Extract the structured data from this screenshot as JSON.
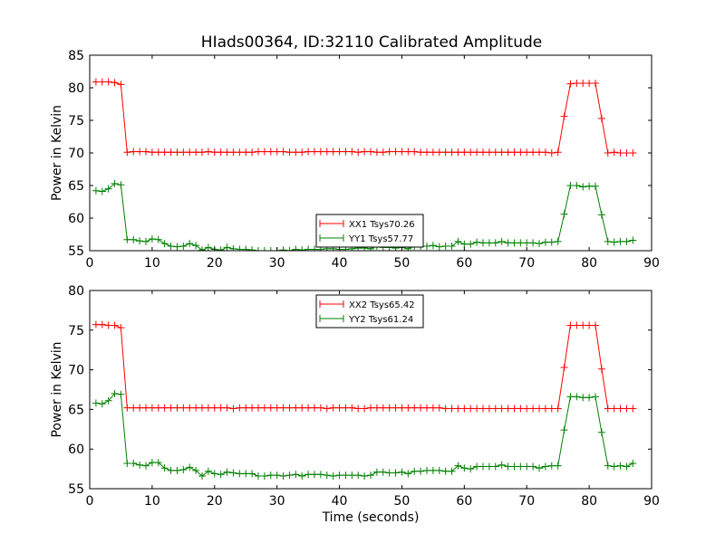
{
  "figure": {
    "title": "HIads00364, ID:32110 Calibrated Amplitude"
  },
  "chart_data": [
    {
      "type": "line",
      "title": "HIads00364, ID:32110 Calibrated Amplitude",
      "xlabel": "",
      "ylabel": "Power in Kelvin",
      "xlim": [
        0,
        90
      ],
      "ylim": [
        55,
        85
      ],
      "xticks": [
        0,
        10,
        20,
        30,
        40,
        50,
        60,
        70,
        80,
        90
      ],
      "yticks": [
        55,
        60,
        65,
        70,
        75,
        80,
        85
      ],
      "grid": false,
      "legend_position": "lower-center",
      "x": [
        1,
        2,
        3,
        4,
        5,
        6,
        7,
        8,
        9,
        10,
        11,
        12,
        13,
        14,
        15,
        16,
        17,
        18,
        19,
        20,
        21,
        22,
        23,
        24,
        25,
        26,
        27,
        28,
        29,
        30,
        31,
        32,
        33,
        34,
        35,
        36,
        37,
        38,
        39,
        40,
        41,
        42,
        43,
        44,
        45,
        46,
        47,
        48,
        49,
        50,
        51,
        52,
        53,
        54,
        55,
        56,
        57,
        58,
        59,
        60,
        61,
        62,
        63,
        64,
        65,
        66,
        67,
        68,
        69,
        70,
        71,
        72,
        73,
        74,
        75,
        76,
        77,
        78,
        79,
        80,
        81,
        82,
        83,
        84,
        85,
        86,
        87
      ],
      "series": [
        {
          "name": "XX1 Tsys70.26",
          "color": "#ff0000",
          "values": [
            80.9,
            80.9,
            80.9,
            80.8,
            80.5,
            70.1,
            70.2,
            70.2,
            70.2,
            70.1,
            70.1,
            70.1,
            70.1,
            70.1,
            70.1,
            70.1,
            70.1,
            70.1,
            70.2,
            70.1,
            70.1,
            70.1,
            70.1,
            70.1,
            70.1,
            70.1,
            70.2,
            70.2,
            70.2,
            70.2,
            70.2,
            70.1,
            70.1,
            70.1,
            70.2,
            70.2,
            70.2,
            70.2,
            70.2,
            70.2,
            70.2,
            70.2,
            70.1,
            70.2,
            70.2,
            70.1,
            70.1,
            70.2,
            70.2,
            70.2,
            70.2,
            70.2,
            70.1,
            70.1,
            70.1,
            70.1,
            70.1,
            70.1,
            70.1,
            70.1,
            70.1,
            70.1,
            70.1,
            70.1,
            70.1,
            70.1,
            70.1,
            70.1,
            70.1,
            70.1,
            70.1,
            70.1,
            70.1,
            70.0,
            70.1,
            75.6,
            80.6,
            80.7,
            80.7,
            80.7,
            80.7,
            75.3,
            70.0,
            70.1,
            70.0,
            70.0,
            70.0
          ]
        },
        {
          "name": "YY1 Tsys57.77",
          "color": "#008000",
          "values": [
            64.2,
            64.1,
            64.5,
            65.3,
            65.1,
            56.7,
            56.7,
            56.5,
            56.4,
            56.8,
            56.7,
            56.1,
            55.7,
            55.6,
            55.7,
            56.1,
            55.8,
            55.1,
            55.5,
            55.2,
            55.1,
            55.5,
            55.3,
            55.2,
            55.2,
            55.1,
            55.0,
            55.0,
            55.0,
            55.0,
            55.1,
            55.0,
            55.2,
            55.1,
            55.2,
            55.2,
            55.2,
            55.3,
            55.3,
            55.2,
            55.2,
            55.3,
            55.4,
            55.4,
            55.3,
            55.7,
            55.5,
            55.5,
            55.4,
            55.5,
            55.3,
            55.7,
            55.7,
            55.7,
            55.8,
            55.6,
            55.7,
            55.7,
            56.4,
            56.0,
            56.0,
            56.3,
            56.2,
            56.2,
            56.2,
            56.4,
            56.2,
            56.2,
            56.2,
            56.2,
            56.2,
            56.1,
            56.3,
            56.3,
            56.4,
            60.6,
            65.0,
            65.0,
            64.8,
            64.9,
            64.9,
            60.5,
            56.4,
            56.3,
            56.4,
            56.4,
            56.6
          ]
        }
      ]
    },
    {
      "type": "line",
      "title": "",
      "xlabel": "Time (seconds)",
      "ylabel": "Power in Kelvin",
      "xlim": [
        0,
        90
      ],
      "ylim": [
        55,
        80
      ],
      "xticks": [
        0,
        10,
        20,
        30,
        40,
        50,
        60,
        70,
        80,
        90
      ],
      "yticks": [
        55,
        60,
        65,
        70,
        75,
        80
      ],
      "grid": false,
      "legend_position": "upper-center",
      "x": [
        1,
        2,
        3,
        4,
        5,
        6,
        7,
        8,
        9,
        10,
        11,
        12,
        13,
        14,
        15,
        16,
        17,
        18,
        19,
        20,
        21,
        22,
        23,
        24,
        25,
        26,
        27,
        28,
        29,
        30,
        31,
        32,
        33,
        34,
        35,
        36,
        37,
        38,
        39,
        40,
        41,
        42,
        43,
        44,
        45,
        46,
        47,
        48,
        49,
        50,
        51,
        52,
        53,
        54,
        55,
        56,
        57,
        58,
        59,
        60,
        61,
        62,
        63,
        64,
        65,
        66,
        67,
        68,
        69,
        70,
        71,
        72,
        73,
        74,
        75,
        76,
        77,
        78,
        79,
        80,
        81,
        82,
        83,
        84,
        85,
        86,
        87
      ],
      "series": [
        {
          "name": "XX2 Tsys65.42",
          "color": "#ff0000",
          "values": [
            75.7,
            75.7,
            75.6,
            75.6,
            75.3,
            65.2,
            65.2,
            65.2,
            65.2,
            65.2,
            65.2,
            65.2,
            65.2,
            65.2,
            65.2,
            65.2,
            65.2,
            65.2,
            65.2,
            65.2,
            65.2,
            65.2,
            65.1,
            65.2,
            65.2,
            65.2,
            65.2,
            65.2,
            65.2,
            65.2,
            65.2,
            65.2,
            65.2,
            65.2,
            65.2,
            65.2,
            65.2,
            65.1,
            65.2,
            65.2,
            65.2,
            65.2,
            65.1,
            65.1,
            65.2,
            65.2,
            65.2,
            65.2,
            65.2,
            65.2,
            65.2,
            65.2,
            65.2,
            65.2,
            65.2,
            65.2,
            65.1,
            65.1,
            65.1,
            65.1,
            65.1,
            65.1,
            65.1,
            65.1,
            65.1,
            65.1,
            65.1,
            65.1,
            65.1,
            65.1,
            65.1,
            65.1,
            65.1,
            65.1,
            65.1,
            70.3,
            75.6,
            75.6,
            75.6,
            75.6,
            75.6,
            70.1,
            65.1,
            65.1,
            65.1,
            65.1,
            65.1
          ]
        },
        {
          "name": "YY2 Tsys61.24",
          "color": "#008000",
          "values": [
            65.8,
            65.7,
            66.1,
            67.0,
            66.9,
            58.2,
            58.2,
            58.0,
            57.9,
            58.3,
            58.3,
            57.6,
            57.3,
            57.3,
            57.4,
            57.7,
            57.3,
            56.6,
            57.2,
            56.9,
            56.8,
            57.1,
            57.0,
            56.9,
            56.9,
            56.9,
            56.6,
            56.6,
            56.7,
            56.7,
            56.6,
            56.7,
            56.8,
            56.6,
            56.8,
            56.8,
            56.8,
            56.7,
            56.6,
            56.7,
            56.7,
            56.7,
            56.7,
            56.6,
            56.7,
            57.1,
            57.1,
            57.0,
            57.0,
            57.1,
            56.9,
            57.2,
            57.2,
            57.3,
            57.3,
            57.3,
            57.2,
            57.2,
            57.9,
            57.6,
            57.5,
            57.8,
            57.8,
            57.8,
            57.8,
            58.0,
            57.8,
            57.8,
            57.8,
            57.8,
            57.8,
            57.6,
            57.8,
            57.9,
            57.9,
            62.4,
            66.6,
            66.6,
            66.5,
            66.5,
            66.6,
            62.1,
            57.9,
            57.8,
            57.9,
            57.8,
            58.2
          ]
        }
      ]
    }
  ]
}
